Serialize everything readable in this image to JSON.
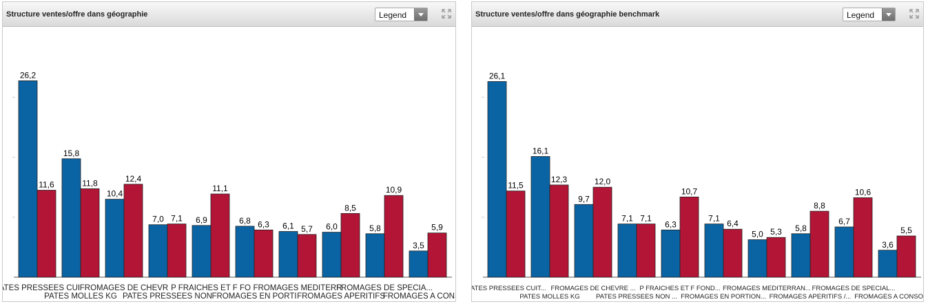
{
  "colors": {
    "series_a": "#0a64a4",
    "series_b": "#b31536"
  },
  "panels": [
    {
      "title": "Structure ventes/offre dans géographie",
      "legend_label": "Legend",
      "expand_icon": "expand-arrows-icon"
    },
    {
      "title": "Structure ventes/offre dans géographie benchmark",
      "legend_label": "Legend",
      "expand_icon": "expand-arrows-icon"
    }
  ],
  "chart_data": [
    {
      "type": "bar",
      "categories": [
        "PATES PRESSEES CUI",
        "PATES MOLLES KG",
        "FROMAGES DE CHEVR",
        "PATES PRESSEES NON",
        "P FRAICHES ET F FO",
        "FROMAGES EN PORTI",
        "FROMAGES MEDITERR",
        "FROMAGES APERITIFS",
        "FROMAGES DE SPECIA...",
        "FROMAGES A CONSOM"
      ],
      "series": [
        {
          "values": [
            26.2,
            15.8,
            10.4,
            7.0,
            6.9,
            6.8,
            6.1,
            6.0,
            5.8,
            3.5
          ]
        },
        {
          "values": [
            11.6,
            11.8,
            12.4,
            7.1,
            11.1,
            6.3,
            5.7,
            8.5,
            10.9,
            5.9
          ]
        }
      ],
      "data_labels": [
        [
          "26,2",
          "15,8",
          "10,4",
          "7,0",
          "6,9",
          "6,8",
          "6,1",
          "6,0",
          "5,8",
          "3,5"
        ],
        [
          "11,6",
          "11,8",
          "12,4",
          "7,1",
          "11,1",
          "6,3",
          "5,7",
          "8,5",
          "10,9",
          "5,9"
        ]
      ],
      "ylim": [
        0,
        28
      ],
      "grid": false
    },
    {
      "type": "bar",
      "categories": [
        "PATES PRESSEES CUIT...",
        "PATES MOLLES KG",
        "FROMAGES DE CHEVRE ...",
        "PATES PRESSEES NON ...",
        "P FRAICHES ET F FOND...",
        "FROMAGES EN PORTION...",
        "FROMAGES MEDITERRAN...",
        "FROMAGES APERITIFS /...",
        "FROMAGES DE SPECIAL...",
        "FROMAGES A CONSOMM..."
      ],
      "series": [
        {
          "values": [
            26.1,
            16.1,
            9.7,
            7.1,
            6.3,
            7.1,
            5.0,
            5.8,
            6.7,
            3.6
          ]
        },
        {
          "values": [
            11.5,
            12.3,
            12.0,
            7.1,
            10.7,
            6.4,
            5.3,
            8.8,
            10.6,
            5.5
          ]
        }
      ],
      "data_labels": [
        [
          "26,1",
          "16,1",
          "9,7",
          "7,1",
          "6,3",
          "7,1",
          "5,0",
          "5,8",
          "6,7",
          "3,6"
        ],
        [
          "11,5",
          "12,3",
          "12,0",
          "7,1",
          "10,7",
          "6,4",
          "5,3",
          "8,8",
          "10,6",
          "5,5"
        ]
      ],
      "ylim": [
        0,
        28
      ],
      "grid": false
    }
  ]
}
